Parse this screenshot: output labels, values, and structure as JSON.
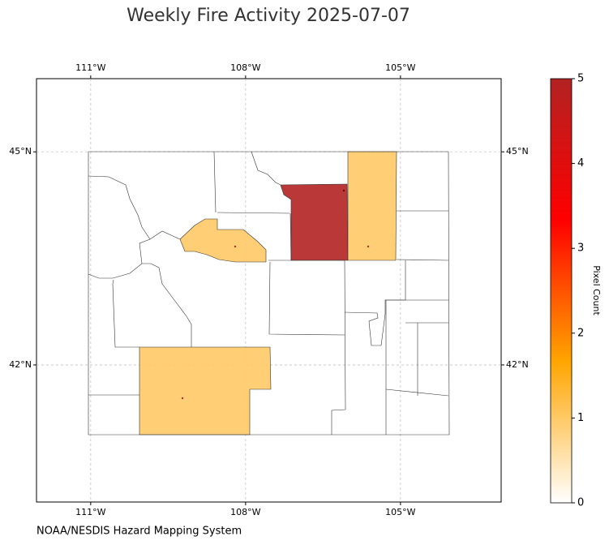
{
  "chart_data": {
    "type": "map",
    "title": "Weekly Fire Activity 2025-07-07",
    "source": "NOAA/NESDIS Hazard Mapping System",
    "xlim": [
      -112.05,
      -103.05
    ],
    "ylim": [
      40.07,
      46.03
    ],
    "xticks": [
      {
        "value": -111,
        "label": "111°W"
      },
      {
        "value": -108,
        "label": "108°W"
      },
      {
        "value": -105,
        "label": "105°W"
      }
    ],
    "yticks": [
      {
        "value": 42,
        "label": "42°N"
      },
      {
        "value": 45,
        "label": "45°N"
      }
    ],
    "grid": true,
    "values": [
      5,
      1,
      1,
      1
    ],
    "colorbar": {
      "label": "Pixel Count",
      "lim": [
        0,
        5
      ],
      "ticks": [
        0,
        1,
        2,
        3,
        4,
        5
      ],
      "colors": [
        "#ffffff",
        "#ffa500",
        "#ff0000",
        "#b22222"
      ]
    }
  }
}
